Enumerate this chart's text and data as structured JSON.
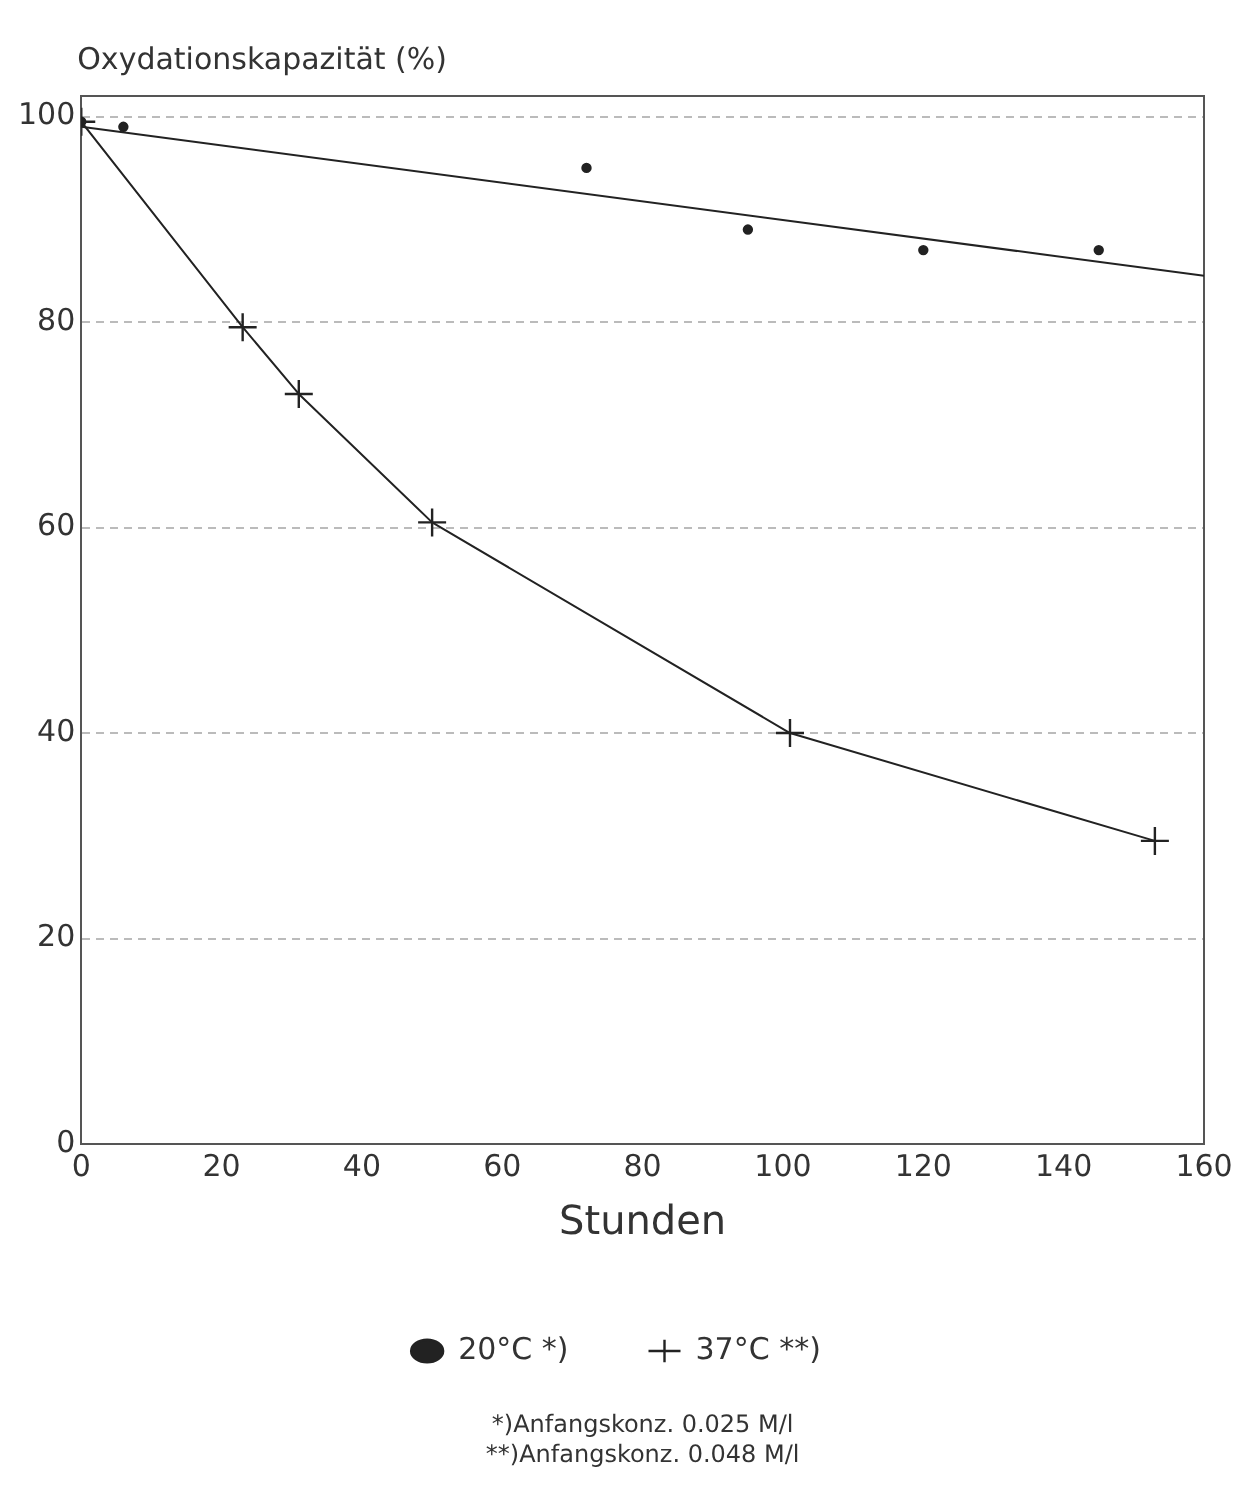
{
  "chart_data": {
    "type": "line",
    "ylabel": "Oxydationskapazität (%)",
    "xlabel": "Stunden",
    "xlim": [
      0,
      160
    ],
    "xticks": [
      0,
      20,
      40,
      60,
      80,
      100,
      120,
      140,
      160
    ],
    "ylim": [
      0,
      102
    ],
    "yticks": [
      0,
      20,
      40,
      60,
      80,
      100
    ],
    "grid": "y",
    "legend": "bottom",
    "series": [
      {
        "name": "20°C *)",
        "type": "scatter",
        "marker": "circle",
        "color": "#222222",
        "x": [
          0,
          6,
          72,
          95,
          120,
          145
        ],
        "values": [
          99.5,
          99,
          95,
          89,
          87,
          87
        ]
      },
      {
        "marker": "none",
        "color": "#222222",
        "x": [
          0,
          160
        ],
        "values": [
          99,
          84.5
        ]
      },
      {
        "name": "37°C **)",
        "marker": "cross",
        "color": "#222222",
        "x": [
          0,
          23,
          31,
          50,
          101,
          153
        ],
        "values": [
          99.5,
          79.5,
          73,
          60.5,
          40,
          29.5
        ]
      }
    ],
    "annotations": [
      "*)Anfangskonz. 0.025 M/l",
      "**)Anfangskonz. 0.048 M/l"
    ]
  }
}
